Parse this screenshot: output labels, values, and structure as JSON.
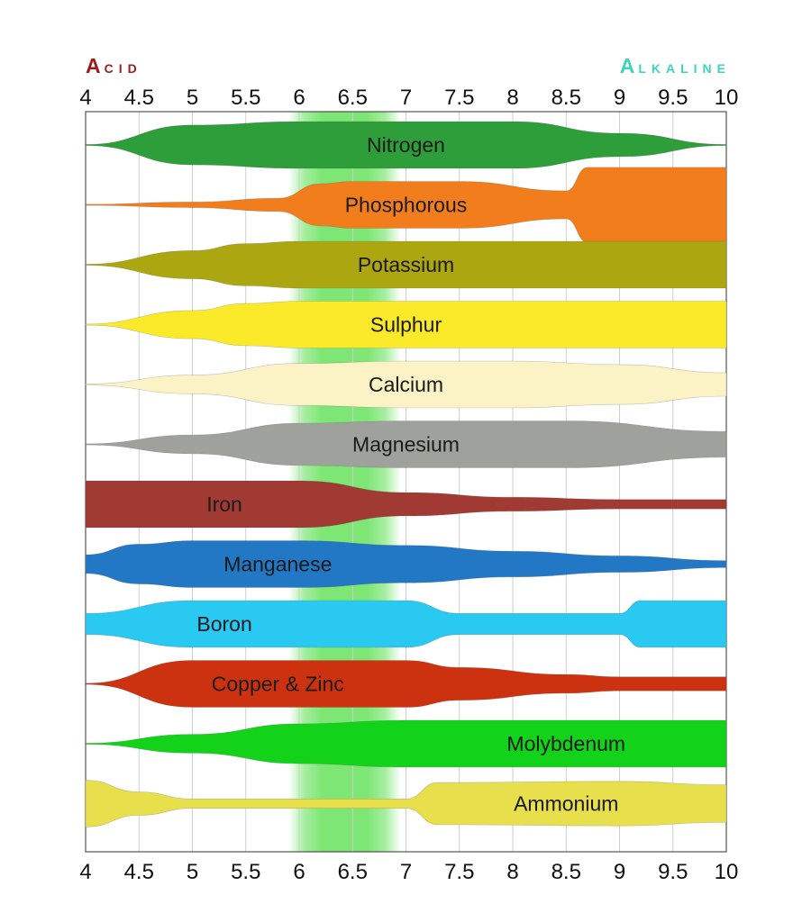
{
  "chart_data": {
    "type": "area",
    "title_left": "Acid",
    "title_right": "Alkaline",
    "title_left_color": "#9b1c1c",
    "title_right_color": "#3fd3b8",
    "xlim": [
      4,
      10
    ],
    "x_ticks": [
      "4",
      "4.5",
      "5",
      "5.5",
      "6",
      "6.5",
      "7",
      "7.5",
      "8",
      "8.5",
      "9",
      "9.5",
      "10"
    ],
    "x_tick_values": [
      4,
      4.5,
      5,
      5.5,
      6,
      6.5,
      7,
      7.5,
      8,
      8.5,
      9,
      9.5,
      10
    ],
    "optimal_range": [
      6,
      7
    ],
    "optimal_color": "#5de052",
    "value_unit": "relative availability (0-1)",
    "series": [
      {
        "name": "Nitrogen",
        "color": "#2e9e3a",
        "label_at": 7,
        "points": [
          [
            4,
            0
          ],
          [
            5,
            0.85
          ],
          [
            6,
            1
          ],
          [
            7,
            1
          ],
          [
            8,
            1
          ],
          [
            9,
            0.5
          ],
          [
            10,
            0
          ]
        ]
      },
      {
        "name": "Phosphorous",
        "color": "#f17d1d",
        "label_at": 7,
        "points": [
          [
            4,
            0
          ],
          [
            5,
            0.12
          ],
          [
            5.8,
            0.28
          ],
          [
            6.2,
            0.9
          ],
          [
            6.5,
            1
          ],
          [
            7.5,
            1
          ],
          [
            8.5,
            0.6
          ],
          [
            8.7,
            1.6
          ],
          [
            10,
            1.6
          ]
        ]
      },
      {
        "name": "Potassium",
        "color": "#aca610",
        "label_at": 7,
        "points": [
          [
            4,
            0
          ],
          [
            5,
            0.6
          ],
          [
            5.5,
            0.9
          ],
          [
            6,
            1
          ],
          [
            10,
            1
          ]
        ]
      },
      {
        "name": "Sulphur",
        "color": "#fbea2a",
        "label_at": 7,
        "points": [
          [
            4,
            0
          ],
          [
            5,
            0.6
          ],
          [
            5.5,
            0.9
          ],
          [
            6,
            1
          ],
          [
            10,
            1
          ]
        ]
      },
      {
        "name": "Calcium",
        "color": "#fbf2c5",
        "label_at": 7,
        "points": [
          [
            4,
            0
          ],
          [
            5,
            0.4
          ],
          [
            6,
            0.9
          ],
          [
            7,
            1
          ],
          [
            8,
            1
          ],
          [
            9,
            0.85
          ],
          [
            10,
            0.5
          ]
        ]
      },
      {
        "name": "Magnesium",
        "color": "#9ea19c",
        "label_at": 7,
        "points": [
          [
            4,
            0
          ],
          [
            5,
            0.4
          ],
          [
            6,
            0.9
          ],
          [
            7,
            1
          ],
          [
            8.5,
            1
          ],
          [
            10,
            0.55
          ]
        ]
      },
      {
        "name": "Iron",
        "color": "#a13a33",
        "label_at": 5.3,
        "points": [
          [
            4,
            1
          ],
          [
            6,
            1
          ],
          [
            7,
            0.5
          ],
          [
            8,
            0.3
          ],
          [
            9,
            0.2
          ],
          [
            10,
            0.2
          ]
        ]
      },
      {
        "name": "Manganese",
        "color": "#2378c5",
        "label_at": 5.8,
        "points": [
          [
            4,
            0.4
          ],
          [
            4.5,
            0.85
          ],
          [
            5,
            1
          ],
          [
            6,
            1
          ],
          [
            7,
            0.8
          ],
          [
            8,
            0.55
          ],
          [
            9,
            0.35
          ],
          [
            10,
            0.15
          ]
        ]
      },
      {
        "name": "Boron",
        "color": "#29c9f2",
        "label_at": 5.3,
        "points": [
          [
            4,
            0.45
          ],
          [
            5,
            1
          ],
          [
            6,
            1
          ],
          [
            7,
            1
          ],
          [
            7.5,
            0.45
          ],
          [
            9,
            0.45
          ],
          [
            9.2,
            1
          ],
          [
            10,
            1
          ]
        ]
      },
      {
        "name": "Copper & Zinc",
        "color": "#cc320f",
        "label_at": 5.8,
        "points": [
          [
            4,
            0
          ],
          [
            5,
            1
          ],
          [
            6,
            1
          ],
          [
            7,
            1
          ],
          [
            7.5,
            0.7
          ],
          [
            8.5,
            0.4
          ],
          [
            9,
            0.3
          ],
          [
            10,
            0.3
          ]
        ]
      },
      {
        "name": "Molybdenum",
        "color": "#12d31a",
        "label_at": 8.5,
        "points": [
          [
            4,
            0
          ],
          [
            5,
            0.4
          ],
          [
            6,
            0.85
          ],
          [
            7,
            1
          ],
          [
            10,
            1
          ]
        ]
      },
      {
        "name": "Ammonium",
        "color": "#e7df4b",
        "label_at": 8.5,
        "points": [
          [
            4,
            1
          ],
          [
            4.5,
            0.5
          ],
          [
            5,
            0.2
          ],
          [
            6,
            0.2
          ],
          [
            7,
            0.2
          ],
          [
            7.3,
            0.9
          ],
          [
            9,
            0.95
          ],
          [
            10,
            0.8
          ]
        ]
      }
    ]
  }
}
